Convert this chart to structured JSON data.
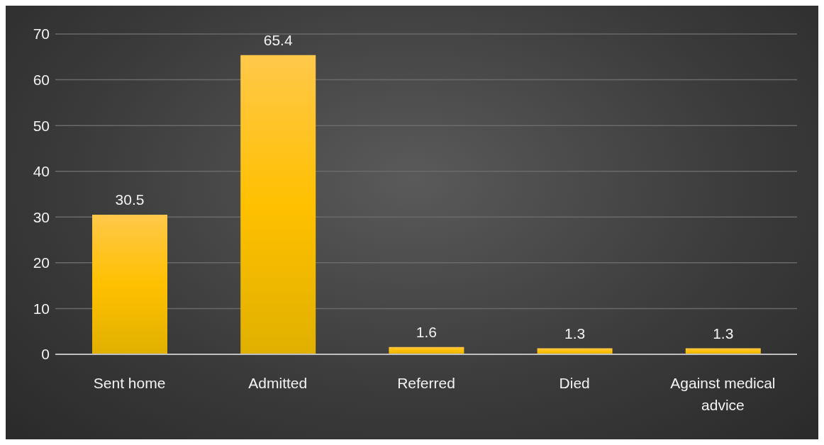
{
  "chart_data": {
    "type": "bar",
    "categories": [
      "Sent home",
      "Admitted",
      "Referred",
      "Died",
      "Against medical advice"
    ],
    "values": [
      30.5,
      65.4,
      1.6,
      1.3,
      1.3
    ],
    "color": "#ffc000",
    "ylim": [
      0,
      70
    ],
    "yticks": [
      0,
      10,
      20,
      30,
      40,
      50,
      60,
      70
    ],
    "grid": "y",
    "data_labels": true
  }
}
